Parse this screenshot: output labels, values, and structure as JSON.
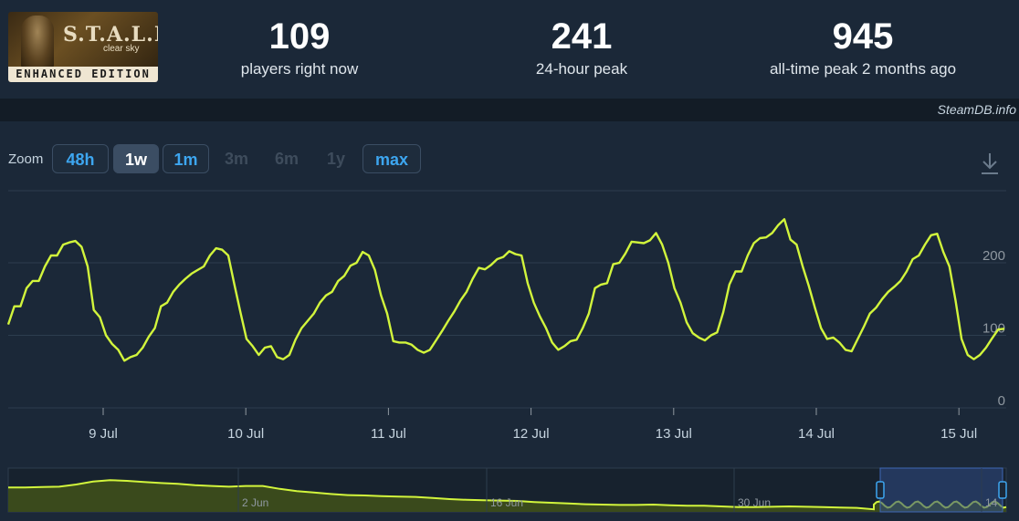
{
  "header": {
    "logo": {
      "title": "S.T.A.L.K.E.R",
      "subtitle": "clear sky",
      "edition": "ENHANCED EDITION"
    },
    "stats": [
      {
        "value": "109",
        "label": "players right now"
      },
      {
        "value": "241",
        "label": "24-hour peak"
      },
      {
        "value": "945",
        "label": "all-time peak 2 months ago"
      }
    ]
  },
  "credit": "SteamDB.info",
  "zoom": {
    "label": "Zoom",
    "buttons": [
      {
        "label": "48h",
        "state": "enabled"
      },
      {
        "label": "1w",
        "state": "selected"
      },
      {
        "label": "1m",
        "state": "enabled"
      },
      {
        "label": "3m",
        "state": "disabled"
      },
      {
        "label": "6m",
        "state": "disabled"
      },
      {
        "label": "1y",
        "state": "disabled"
      },
      {
        "label": "max",
        "state": "enabled"
      }
    ]
  },
  "icons": {
    "download": "download-icon"
  },
  "colors": {
    "line": "#d2f53c",
    "grid": "#2d3d4e",
    "navigator_fill": "#3a4a1c",
    "selection": "#2f4a85"
  },
  "chart_data": {
    "type": "line",
    "x_ticks": [
      "9 Jul",
      "10 Jul",
      "11 Jul",
      "12 Jul",
      "13 Jul",
      "14 Jul",
      "15 Jul"
    ],
    "y_ticks": [
      "0",
      "100",
      "200"
    ],
    "ylim": [
      0,
      200
    ],
    "grid": true,
    "series": [
      {
        "values": [
          115,
          140,
          140,
          165,
          175,
          175,
          195,
          210,
          210,
          225,
          228,
          230,
          222,
          195,
          135,
          125,
          100,
          88,
          80,
          65,
          70,
          73,
          83,
          98,
          110,
          140,
          145,
          160,
          170,
          178,
          185,
          190,
          195,
          210,
          220,
          218,
          210,
          170,
          132,
          95,
          85,
          73,
          83,
          85,
          70,
          67,
          73,
          94,
          110,
          120,
          130,
          145,
          155,
          160,
          175,
          182,
          196,
          200,
          215,
          210,
          190,
          155,
          130,
          92,
          90,
          90,
          87,
          80,
          76,
          80,
          93,
          106,
          120,
          133,
          148,
          160,
          178,
          193,
          191,
          197,
          205,
          208,
          216,
          212,
          210,
          172,
          145,
          126,
          110,
          90,
          80,
          85,
          92,
          94,
          110,
          130,
          165,
          170,
          172,
          198,
          200,
          213,
          229,
          228,
          227,
          231,
          241,
          225,
          200,
          165,
          145,
          118,
          103,
          97,
          93,
          100,
          104,
          132,
          170,
          188,
          188,
          210,
          227,
          234,
          235,
          241,
          252,
          260,
          232,
          225,
          195,
          168,
          138,
          110,
          95,
          97,
          90,
          80,
          78,
          95,
          112,
          130,
          138,
          150,
          160,
          167,
          175,
          188,
          205,
          210,
          225,
          238,
          240,
          215,
          195,
          148,
          95,
          73,
          67,
          73,
          83,
          96,
          108,
          109
        ],
        "start_pct": 0,
        "end_pct": 100
      }
    ],
    "navigator": {
      "x_ticks": [
        "2 Jun",
        "16 Jun",
        "30 Jun",
        "14"
      ]
    }
  }
}
